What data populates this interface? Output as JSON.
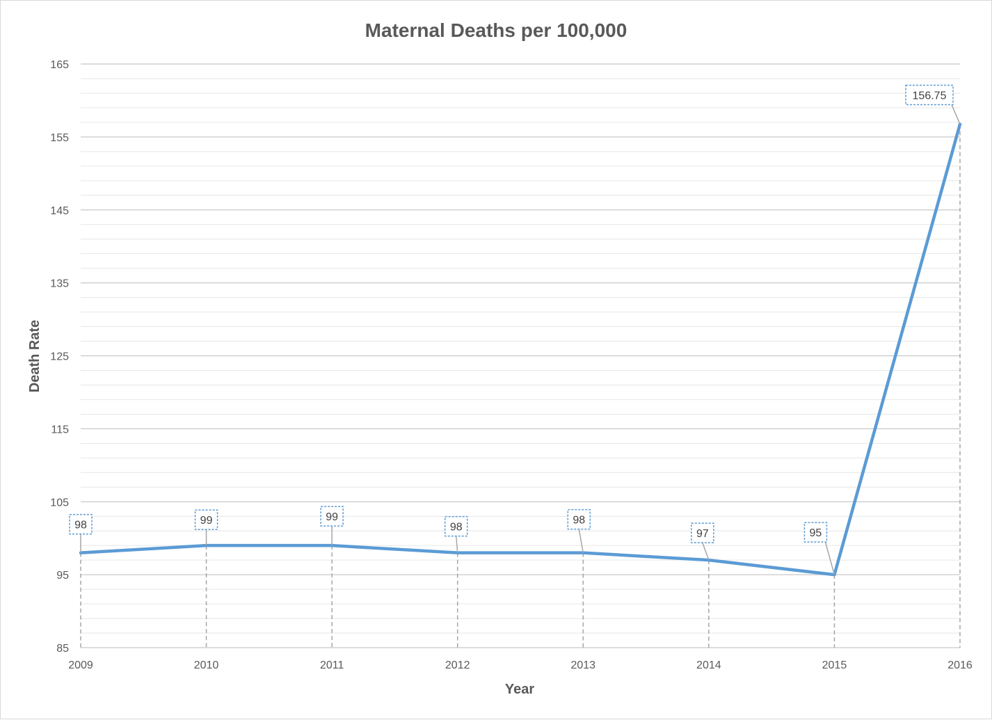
{
  "chart_data": {
    "type": "line",
    "title": "Maternal Deaths per 100,000",
    "xlabel": "Year",
    "ylabel": "Death Rate",
    "categories": [
      "2009",
      "2010",
      "2011",
      "2012",
      "2013",
      "2014",
      "2015",
      "2016"
    ],
    "series": [
      {
        "values": [
          98,
          99,
          99,
          98,
          98,
          97,
          95,
          156.75
        ],
        "color": "#5b9bd5"
      }
    ],
    "data_labels": [
      "98",
      "99",
      "99",
      "98",
      "98",
      "97",
      "95",
      "156.75"
    ],
    "ylim": [
      85,
      165
    ],
    "y_ticks": [
      85,
      95,
      105,
      115,
      125,
      135,
      145,
      155,
      165
    ],
    "y_tick_labels": [
      "85",
      "95",
      "105",
      "115",
      "125",
      "135",
      "145",
      "155",
      "165"
    ],
    "major_grid": true,
    "minor_grid": true,
    "drop_lines": true,
    "legend": "none",
    "colors": {
      "series": "#5b9bd5",
      "major_grid": "#c8c8c8",
      "minor_grid": "#e6e6e6",
      "drop_line": "#a6a6a6",
      "label_border": "#5b9bd5",
      "text": "#595959"
    }
  }
}
